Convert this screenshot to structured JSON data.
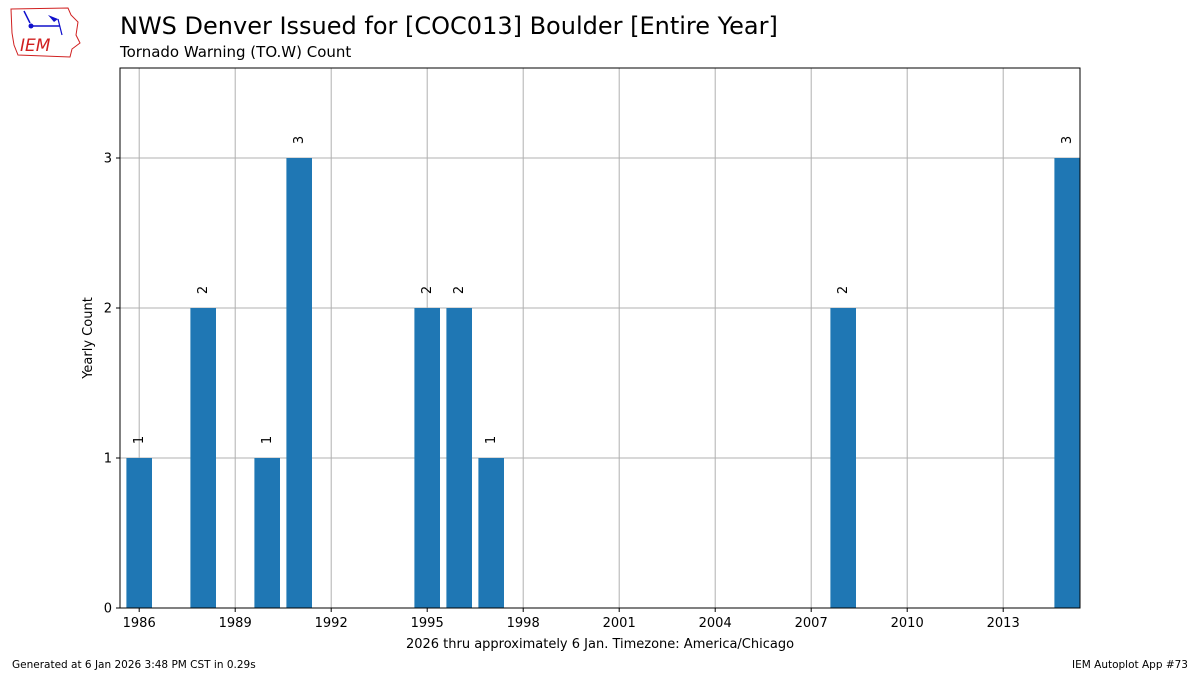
{
  "header": {
    "title": "NWS Denver Issued for [COC013] Boulder [Entire Year]",
    "subtitle": "Tornado Warning (TO.W) Count"
  },
  "logo": {
    "text": "IEM",
    "icon": "iowa-state-outline-weather-logo"
  },
  "footer": {
    "left": "Generated at 6 Jan 2026 3:48 PM CST in 0.29s",
    "right": "IEM Autoplot App #73"
  },
  "chart_data": {
    "type": "bar",
    "x": [
      1986,
      1988,
      1990,
      1991,
      1995,
      1996,
      1997,
      2008,
      2015
    ],
    "values": [
      1,
      2,
      1,
      3,
      2,
      2,
      1,
      2,
      3
    ],
    "data_labels": [
      "1",
      "2",
      "1",
      "3",
      "2",
      "2",
      "1",
      "2",
      "3"
    ],
    "xlabel": "2026 thru approximately 6 Jan. Timezone: America/Chicago",
    "ylabel": "Yearly Count",
    "xlim": [
      1985.4,
      2015.4
    ],
    "ylim": [
      0,
      3.6
    ],
    "xticks": [
      1986,
      1989,
      1992,
      1995,
      1998,
      2001,
      2004,
      2007,
      2010,
      2013
    ],
    "yticks": [
      0,
      1,
      2,
      3
    ],
    "grid": true,
    "bar_color": "#1f77b4",
    "grid_color": "#b0b0b0"
  }
}
